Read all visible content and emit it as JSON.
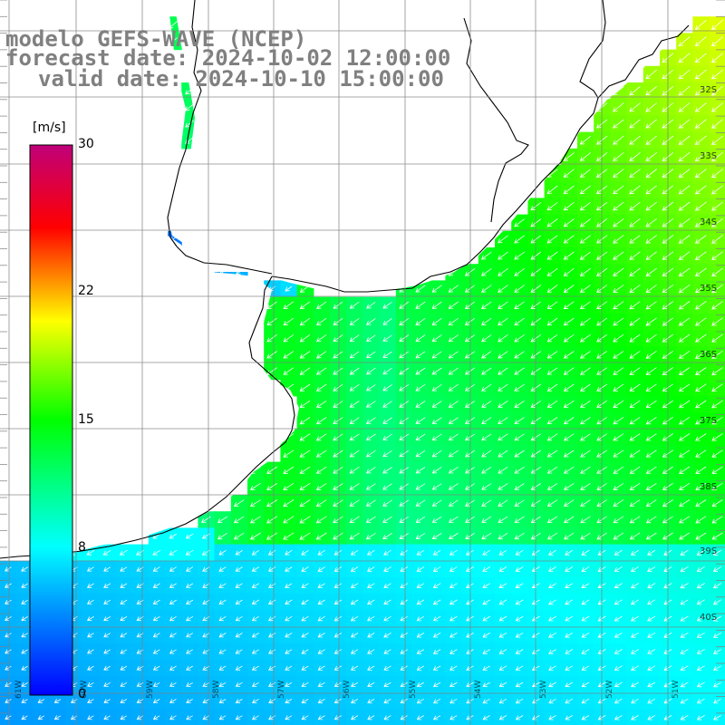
{
  "title": {
    "line1": "modelo GEFS-WAVE (NCEP)",
    "line2": "forecast date: 2024-10-02 12:00:00",
    "line3": "valid date: 2024-10-10 15:00:00"
  },
  "colorbar": {
    "unit": "[m/s]",
    "ticks": [
      {
        "value": 30,
        "label": "30"
      },
      {
        "value": 22,
        "label": "22"
      },
      {
        "value": 15,
        "label": "15"
      },
      {
        "value": 8,
        "label": "8"
      },
      {
        "value": 0,
        "label": "0"
      }
    ],
    "range": [
      0,
      30
    ]
  },
  "axis": {
    "lat_labels": [
      "32S",
      "33S",
      "34S",
      "35S",
      "36S",
      "37S",
      "38S",
      "39S",
      "40S"
    ],
    "lon_labels": [
      "61W",
      "60W",
      "59W",
      "58W",
      "57W",
      "56W",
      "55W",
      "54W",
      "53W",
      "52W",
      "51W"
    ]
  },
  "colors": {
    "land": "#ffffff",
    "grid": "#808080",
    "coast": "#000000",
    "title": "#808080",
    "arrows": "#ffffff"
  },
  "field": {
    "variable": "wind speed",
    "units": "m/s",
    "description_values": {
      "southwest_min": 6,
      "northeast_max": 17,
      "estuary_min": 4
    }
  }
}
